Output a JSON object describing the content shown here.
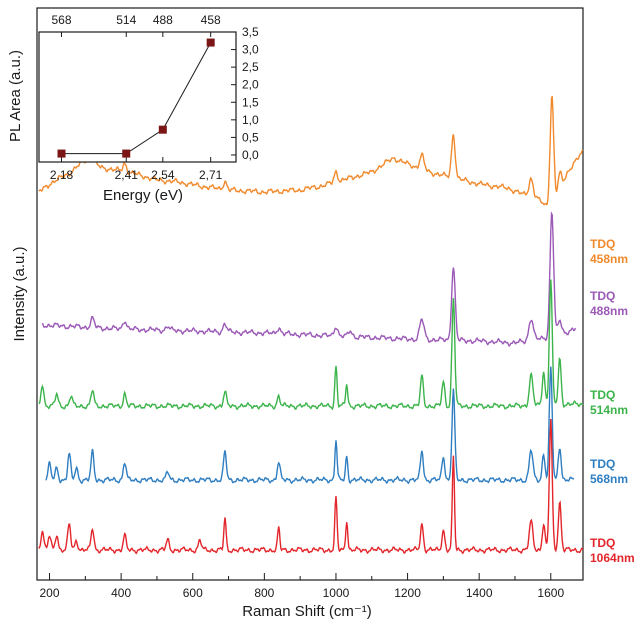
{
  "chart_data": [
    {
      "type": "line",
      "xlabel": "Raman Shift (cm⁻¹)",
      "ylabel": "Intensity (a.u.)",
      "xlim": [
        165,
        1690
      ],
      "x_ticks": [
        "200",
        "400",
        "600",
        "800",
        "1000",
        "1200",
        "1400",
        "1600"
      ],
      "x_minor_step": 100,
      "series": [
        {
          "name": "TDQ",
          "label_line2": "458nm",
          "color": "#f08a2d",
          "x_start": 170,
          "x_end": 1690,
          "baseline": 200,
          "points": [
            [
              170,
              8
            ],
            [
              200,
              16
            ],
            [
              260,
              28
            ],
            [
              300,
              40
            ],
            [
              350,
              32
            ],
            [
              420,
              28
            ],
            [
              500,
              20
            ],
            [
              560,
              18
            ],
            [
              620,
              14
            ],
            [
              700,
              10
            ],
            [
              800,
              8
            ],
            [
              900,
              10
            ],
            [
              960,
              14
            ],
            [
              1020,
              20
            ],
            [
              1100,
              28
            ],
            [
              1160,
              42
            ],
            [
              1200,
              36
            ],
            [
              1260,
              28
            ],
            [
              1330,
              22
            ],
            [
              1400,
              16
            ],
            [
              1480,
              12
            ],
            [
              1520,
              6
            ],
            [
              1560,
              2
            ],
            [
              1600,
              -10
            ],
            [
              1650,
              30
            ],
            [
              1690,
              48
            ]
          ],
          "peaks": [
            [
              320,
              12,
              5
            ],
            [
              410,
              8,
              5
            ],
            [
              690,
              8,
              5
            ],
            [
              1000,
              10,
              5
            ],
            [
              1240,
              14,
              6
            ],
            [
              1328,
              44,
              5
            ],
            [
              1545,
              18,
              6
            ],
            [
              1603,
              112,
              5
            ],
            [
              1625,
              16,
              5
            ]
          ]
        },
        {
          "name": "TDQ",
          "label_line2": "488nm",
          "color": "#9b59b6",
          "x_start": 180,
          "x_end": 1670,
          "baseline": 325,
          "points": [
            [
              180,
              0
            ],
            [
              400,
              -4
            ],
            [
              800,
              -8
            ],
            [
              1200,
              -14
            ],
            [
              1400,
              -16
            ],
            [
              1500,
              -18
            ],
            [
              1600,
              -12
            ],
            [
              1670,
              -4
            ]
          ],
          "peaks": [
            [
              320,
              9,
              5
            ],
            [
              410,
              9,
              5
            ],
            [
              530,
              4,
              5
            ],
            [
              690,
              8,
              5
            ],
            [
              840,
              6,
              5
            ],
            [
              1000,
              10,
              5
            ],
            [
              1040,
              6,
              5
            ],
            [
              1240,
              20,
              6
            ],
            [
              1328,
              74,
              5
            ],
            [
              1545,
              22,
              6
            ],
            [
              1603,
              126,
              5
            ],
            [
              1625,
              14,
              5
            ]
          ]
        },
        {
          "name": "TDQ",
          "label_line2": "514nm",
          "color": "#3cb44b",
          "x_start": 170,
          "x_end": 1690,
          "baseline": 406,
          "points": [
            [
              170,
              0
            ],
            [
              500,
              0
            ],
            [
              900,
              0
            ],
            [
              1200,
              0
            ],
            [
              1500,
              0
            ],
            [
              1690,
              2
            ]
          ],
          "peaks": [
            [
              180,
              22,
              4
            ],
            [
              220,
              12,
              4
            ],
            [
              260,
              10,
              4
            ],
            [
              320,
              16,
              4
            ],
            [
              410,
              12,
              4
            ],
            [
              690,
              14,
              4
            ],
            [
              840,
              10,
              4
            ],
            [
              1000,
              40,
              3
            ],
            [
              1030,
              22,
              3
            ],
            [
              1240,
              30,
              4
            ],
            [
              1300,
              24,
              4
            ],
            [
              1328,
              108,
              4
            ],
            [
              1545,
              30,
              5
            ],
            [
              1580,
              34,
              4
            ],
            [
              1600,
              126,
              4
            ],
            [
              1625,
              46,
              4
            ]
          ]
        },
        {
          "name": "TDQ",
          "label_line2": "568nm",
          "color": "#2f7ec1",
          "x_start": 190,
          "x_end": 1665,
          "baseline": 480,
          "points": [
            [
              190,
              0
            ],
            [
              500,
              0
            ],
            [
              900,
              0
            ],
            [
              1300,
              0
            ],
            [
              1665,
              0
            ]
          ],
          "peaks": [
            [
              200,
              16,
              4
            ],
            [
              220,
              12,
              4
            ],
            [
              255,
              26,
              4
            ],
            [
              275,
              12,
              4
            ],
            [
              320,
              28,
              4
            ],
            [
              410,
              18,
              4
            ],
            [
              530,
              8,
              4
            ],
            [
              690,
              28,
              4
            ],
            [
              840,
              18,
              4
            ],
            [
              1000,
              40,
              3
            ],
            [
              1030,
              24,
              3
            ],
            [
              1240,
              30,
              4
            ],
            [
              1300,
              24,
              4
            ],
            [
              1328,
              90,
              4
            ],
            [
              1545,
              30,
              5
            ],
            [
              1580,
              26,
              4
            ],
            [
              1600,
              112,
              4
            ],
            [
              1625,
              34,
              4
            ]
          ]
        },
        {
          "name": "TDQ",
          "label_line2": "1064nm",
          "color": "#e3262b",
          "x_start": 170,
          "x_end": 1690,
          "baseline": 550,
          "points": [
            [
              170,
              0
            ],
            [
              600,
              0
            ],
            [
              1000,
              0
            ],
            [
              1400,
              0
            ],
            [
              1690,
              0
            ]
          ],
          "peaks": [
            [
              180,
              20,
              4
            ],
            [
              200,
              14,
              4
            ],
            [
              220,
              16,
              4
            ],
            [
              255,
              26,
              4
            ],
            [
              275,
              10,
              4
            ],
            [
              320,
              22,
              4
            ],
            [
              410,
              14,
              4
            ],
            [
              530,
              10,
              4
            ],
            [
              620,
              10,
              4
            ],
            [
              690,
              32,
              3
            ],
            [
              840,
              22,
              3
            ],
            [
              1000,
              52,
              3
            ],
            [
              1030,
              30,
              3
            ],
            [
              1240,
              26,
              4
            ],
            [
              1300,
              20,
              4
            ],
            [
              1328,
              94,
              3
            ],
            [
              1545,
              28,
              5
            ],
            [
              1580,
              26,
              4
            ],
            [
              1600,
              130,
              4
            ],
            [
              1625,
              48,
              4
            ]
          ]
        }
      ]
    },
    {
      "type": "scatter",
      "xlabel": "Energy (eV)",
      "ylabel": "PL Area (a.u.)",
      "xlim": [
        2.1,
        2.8
      ],
      "ylim": [
        -0.2,
        3.5
      ],
      "x_ticks": [
        "2,18",
        "2,41",
        "2,54",
        "2,71"
      ],
      "x_tick_values": [
        2.18,
        2.41,
        2.54,
        2.71
      ],
      "top_ticks": [
        "568",
        "514",
        "488",
        "458"
      ],
      "y_ticks": [
        "0,0",
        "0,5",
        "1,0",
        "1,5",
        "2,0",
        "2,5",
        "3,0",
        "3,5"
      ],
      "y_tick_values": [
        0,
        0.5,
        1.0,
        1.5,
        2.0,
        2.5,
        3.0,
        3.5
      ],
      "marker_color": "#7a1616",
      "x": [
        2.18,
        2.41,
        2.54,
        2.71
      ],
      "y": [
        0.04,
        0.04,
        0.72,
        3.2
      ]
    }
  ]
}
